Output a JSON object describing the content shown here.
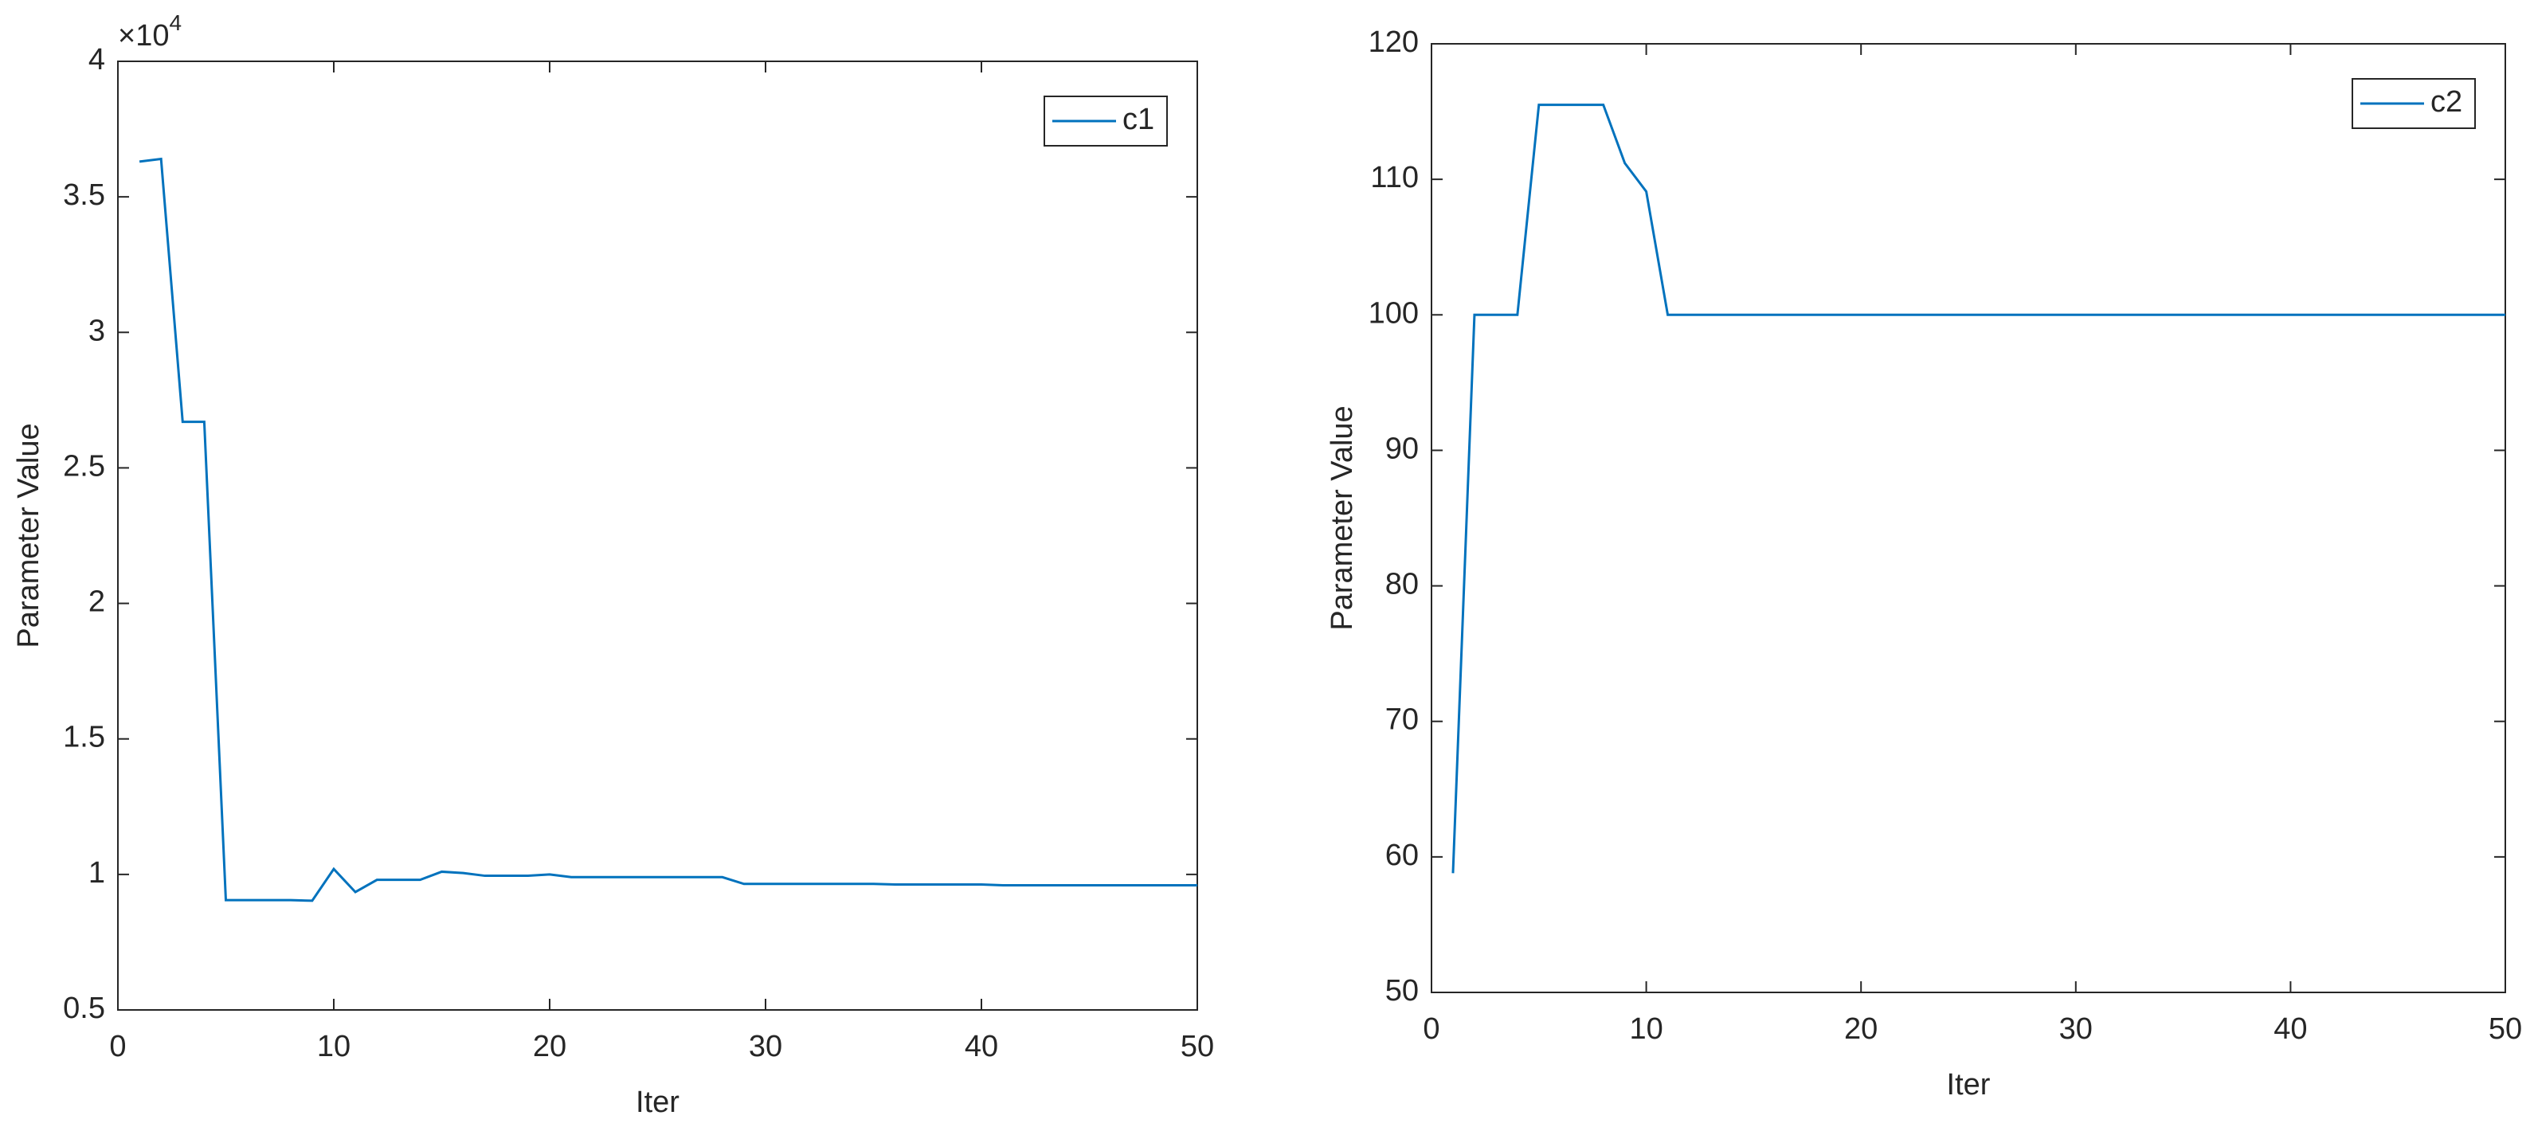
{
  "chart_data": [
    {
      "type": "line",
      "y_label": "Parameter Value",
      "x_label": "Iter",
      "y_multiplier": {
        "base": "×10",
        "exponent": "4"
      },
      "xlim": [
        0,
        50
      ],
      "xticks": [
        0,
        10,
        20,
        30,
        40,
        50
      ],
      "ylim": [
        0.5,
        4
      ],
      "yticks": [
        0.5,
        1,
        1.5,
        2,
        2.5,
        3,
        3.5,
        4
      ],
      "grid": false,
      "legend": "northeast",
      "x": [
        1,
        2,
        3,
        4,
        5,
        6,
        7,
        8,
        9,
        10,
        11,
        12,
        13,
        14,
        15,
        16,
        17,
        18,
        19,
        20,
        21,
        22,
        23,
        24,
        25,
        26,
        27,
        28,
        29,
        30,
        31,
        32,
        33,
        34,
        35,
        36,
        37,
        38,
        39,
        40,
        41,
        42,
        43,
        44,
        45,
        46,
        47,
        48,
        49,
        50
      ],
      "series": [
        {
          "name": "c1",
          "color": "#0072bd",
          "values": [
            3.63,
            3.64,
            2.67,
            2.67,
            0.905,
            0.905,
            0.905,
            0.905,
            0.903,
            1.02,
            0.935,
            0.98,
            0.98,
            0.98,
            1.01,
            1.005,
            0.995,
            0.995,
            0.995,
            1.0,
            0.99,
            0.99,
            0.99,
            0.99,
            0.99,
            0.99,
            0.99,
            0.99,
            0.965,
            0.965,
            0.965,
            0.965,
            0.965,
            0.965,
            0.965,
            0.963,
            0.963,
            0.963,
            0.963,
            0.963,
            0.96,
            0.96,
            0.96,
            0.96,
            0.96,
            0.96,
            0.96,
            0.96,
            0.96,
            0.96
          ]
        }
      ]
    },
    {
      "type": "line",
      "y_label": "Parameter Value",
      "x_label": "Iter",
      "xlim": [
        0,
        50
      ],
      "xticks": [
        0,
        10,
        20,
        30,
        40,
        50
      ],
      "ylim": [
        50,
        120
      ],
      "yticks": [
        50,
        60,
        70,
        80,
        90,
        100,
        110,
        120
      ],
      "grid": false,
      "legend": "northeast",
      "x": [
        1,
        2,
        3,
        4,
        5,
        6,
        7,
        8,
        9,
        10,
        11,
        12,
        13,
        14,
        15,
        16,
        17,
        18,
        19,
        20,
        21,
        22,
        23,
        24,
        25,
        26,
        27,
        28,
        29,
        30,
        31,
        32,
        33,
        34,
        35,
        36,
        37,
        38,
        39,
        40,
        41,
        42,
        43,
        44,
        45,
        46,
        47,
        48,
        49,
        50
      ],
      "series": [
        {
          "name": "c2",
          "color": "#0072bd",
          "values": [
            58.8,
            100,
            100,
            100,
            115.5,
            115.5,
            115.5,
            115.5,
            111.2,
            109.1,
            100,
            100,
            100,
            100,
            100,
            100,
            100,
            100,
            100,
            100,
            100,
            100,
            100,
            100,
            100,
            100,
            100,
            100,
            100,
            100,
            100,
            100,
            100,
            100,
            100,
            100,
            100,
            100,
            100,
            100,
            100,
            100,
            100,
            100,
            100,
            100,
            100,
            100,
            100,
            100
          ]
        }
      ]
    }
  ]
}
